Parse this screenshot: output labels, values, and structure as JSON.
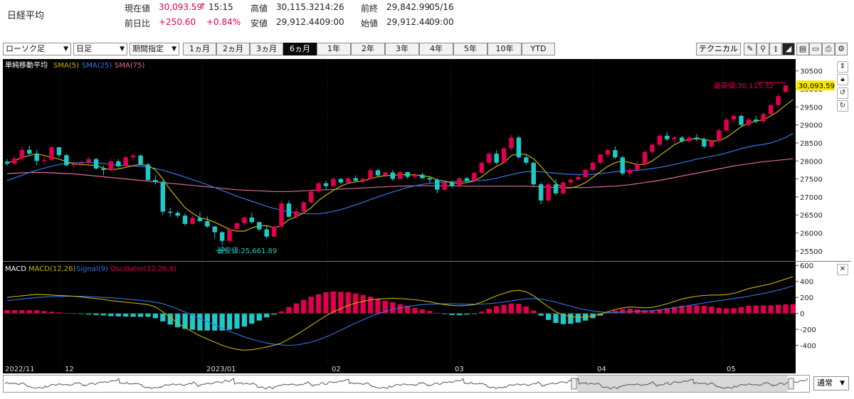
{
  "header": {
    "name": "日経平均",
    "current_label": "現在値",
    "current_value": "30,093.59",
    "current_arrow": "↑",
    "current_time": "15:15",
    "high_label": "高値",
    "high_value": "30,115.32",
    "high_time": "14:26",
    "prev_close_label": "前終",
    "prev_close_value": "29,842.99",
    "prev_close_date": "05/16",
    "change_label": "前日比",
    "change_value": "+250.60",
    "change_pct": "+0.84%",
    "low_label": "安値",
    "low_value": "29,912.44",
    "low_time": "09:00",
    "open_label": "始値",
    "open_value": "29,912.44",
    "open_time": "09:00"
  },
  "toolbar": {
    "chart_type": "ローソク足",
    "interval": "日足",
    "range_mode": "期間指定",
    "periods": [
      "1ヵ月",
      "2ヵ月",
      "3ヵ月",
      "6ヵ月",
      "1年",
      "2年",
      "3年",
      "4年",
      "5年",
      "10年",
      "YTD"
    ],
    "active_period": "6ヵ月",
    "technical_label": "テクニカル",
    "tool_icons": [
      "pencil-icon",
      "zoom-icon",
      "volume-icon",
      "area-chart-icon",
      "document-icon",
      "folder-icon",
      "print-icon",
      "settings-icon"
    ]
  },
  "view_select": "通常",
  "colors": {
    "up": "#e0004d",
    "down": "#20c8c8",
    "sma5": "#c8b400",
    "sma25": "#2f78e0",
    "sma75": "#e06a9a",
    "macd": "#c8b400",
    "signal": "#2f78e0",
    "hist_pos": "#e0004d",
    "hist_neg": "#20c8c8",
    "background": "#000000"
  },
  "chart_data": [
    {
      "type": "candlestick",
      "title": "単純移動平均",
      "legend": [
        "SMA(5)",
        "SMA(25)",
        "SMA(75)"
      ],
      "y_ticks": [
        25500,
        26000,
        26500,
        27000,
        27500,
        28000,
        28500,
        29000,
        29500,
        30000,
        30500
      ],
      "ylim": [
        25300,
        30750
      ],
      "x_labels": [
        "2022/11",
        "12",
        "2023/01",
        "02",
        "03",
        "04",
        "05"
      ],
      "last_price_label": "30,093.59",
      "annotations": {
        "high": "最高値:30,115.32",
        "low": "最安値:25,661.89"
      },
      "ohlc": [
        [
          27980,
          28050,
          27860,
          27920
        ],
        [
          27920,
          28150,
          27870,
          28070
        ],
        [
          28070,
          28400,
          27990,
          28310
        ],
        [
          28310,
          28420,
          28150,
          28200
        ],
        [
          28200,
          28300,
          27880,
          28000
        ],
        [
          28000,
          28120,
          27900,
          28030
        ],
        [
          28030,
          28410,
          27990,
          28380
        ],
        [
          28380,
          28390,
          28100,
          28160
        ],
        [
          28160,
          28200,
          27850,
          27880
        ],
        [
          27880,
          28000,
          27800,
          27920
        ],
        [
          27920,
          28010,
          27840,
          27960
        ],
        [
          27960,
          28110,
          27850,
          28050
        ],
        [
          28050,
          28090,
          27760,
          27790
        ],
        [
          27790,
          27880,
          27600,
          27750
        ],
        [
          27750,
          28050,
          27700,
          27990
        ],
        [
          27990,
          28050,
          27820,
          27850
        ],
        [
          27850,
          28150,
          27800,
          28100
        ],
        [
          28100,
          28200,
          28000,
          28150
        ],
        [
          28150,
          28180,
          27880,
          27900
        ],
        [
          27900,
          27950,
          27450,
          27470
        ],
        [
          27470,
          27600,
          27350,
          27420
        ],
        [
          27420,
          27460,
          26500,
          26590
        ],
        [
          26590,
          26700,
          26450,
          26560
        ],
        [
          26560,
          26620,
          26420,
          26480
        ],
        [
          26480,
          26550,
          26200,
          26250
        ],
        [
          26250,
          26480,
          26230,
          26420
        ],
        [
          26420,
          26580,
          26300,
          26330
        ],
        [
          26330,
          26460,
          26150,
          26180
        ],
        [
          26180,
          26200,
          25850,
          26020
        ],
        [
          26020,
          26050,
          25661,
          25780
        ],
        [
          25780,
          26150,
          25720,
          26110
        ],
        [
          26110,
          26300,
          26080,
          26270
        ],
        [
          26270,
          26450,
          26200,
          26430
        ],
        [
          26430,
          26560,
          26260,
          26300
        ],
        [
          26300,
          26320,
          26050,
          26100
        ],
        [
          26100,
          26200,
          25850,
          25900
        ],
        [
          25900,
          26200,
          25880,
          26180
        ],
        [
          26180,
          26900,
          26120,
          26820
        ],
        [
          26820,
          26900,
          26420,
          26450
        ],
        [
          26450,
          26700,
          26400,
          26600
        ],
        [
          26600,
          26900,
          26550,
          26850
        ],
        [
          26850,
          27200,
          26800,
          27150
        ],
        [
          27150,
          27420,
          27100,
          27380
        ],
        [
          27380,
          27450,
          27200,
          27300
        ],
        [
          27300,
          27550,
          27280,
          27500
        ],
        [
          27500,
          27520,
          27350,
          27400
        ],
        [
          27400,
          27560,
          27370,
          27520
        ],
        [
          27520,
          27600,
          27420,
          27450
        ],
        [
          27450,
          27550,
          27380,
          27500
        ],
        [
          27500,
          27800,
          27480,
          27740
        ],
        [
          27740,
          27780,
          27550,
          27600
        ],
        [
          27600,
          27720,
          27550,
          27680
        ],
        [
          27680,
          27750,
          27450,
          27500
        ],
        [
          27500,
          27720,
          27480,
          27690
        ],
        [
          27690,
          27700,
          27500,
          27560
        ],
        [
          27560,
          27650,
          27520,
          27620
        ],
        [
          27620,
          27680,
          27500,
          27520
        ],
        [
          27520,
          27580,
          27380,
          27480
        ],
        [
          27480,
          27520,
          27100,
          27200
        ],
        [
          27200,
          27440,
          27150,
          27400
        ],
        [
          27400,
          27450,
          27250,
          27300
        ],
        [
          27300,
          27550,
          27280,
          27520
        ],
        [
          27520,
          27560,
          27400,
          27450
        ],
        [
          27450,
          27700,
          27430,
          27670
        ],
        [
          27670,
          28000,
          27650,
          27950
        ],
        [
          27950,
          28250,
          27900,
          28200
        ],
        [
          28200,
          28300,
          27900,
          27950
        ],
        [
          27950,
          28400,
          27930,
          28350
        ],
        [
          28350,
          28720,
          28300,
          28650
        ],
        [
          28650,
          28700,
          28050,
          28100
        ],
        [
          28100,
          28200,
          27900,
          27950
        ],
        [
          27950,
          27980,
          27300,
          27350
        ],
        [
          27350,
          27400,
          26800,
          26900
        ],
        [
          26900,
          27400,
          26880,
          27350
        ],
        [
          27350,
          27500,
          27050,
          27100
        ],
        [
          27100,
          27450,
          27050,
          27400
        ],
        [
          27400,
          27500,
          27300,
          27480
        ],
        [
          27480,
          27600,
          27450,
          27550
        ],
        [
          27550,
          27800,
          27500,
          27750
        ],
        [
          27750,
          28000,
          27700,
          27950
        ],
        [
          27950,
          28200,
          27900,
          28180
        ],
        [
          28180,
          28350,
          28100,
          28300
        ],
        [
          28300,
          28400,
          28050,
          28100
        ],
        [
          28100,
          28150,
          27600,
          27650
        ],
        [
          27650,
          27800,
          27550,
          27750
        ],
        [
          27750,
          28000,
          27700,
          27900
        ],
        [
          27900,
          28300,
          27850,
          28250
        ],
        [
          28250,
          28500,
          28200,
          28450
        ],
        [
          28450,
          28750,
          28400,
          28700
        ],
        [
          28700,
          28800,
          28550,
          28600
        ],
        [
          28600,
          28700,
          28450,
          28650
        ],
        [
          28650,
          28700,
          28500,
          28550
        ],
        [
          28550,
          28700,
          28500,
          28650
        ],
        [
          28650,
          28750,
          28550,
          28600
        ],
        [
          28600,
          28650,
          28350,
          28400
        ],
        [
          28400,
          28600,
          28350,
          28550
        ],
        [
          28550,
          28900,
          28500,
          28850
        ],
        [
          28850,
          29200,
          28800,
          29150
        ],
        [
          29150,
          29300,
          29050,
          29250
        ],
        [
          29250,
          29300,
          28950,
          29000
        ],
        [
          29000,
          29200,
          28950,
          29150
        ],
        [
          29150,
          29250,
          29050,
          29100
        ],
        [
          29100,
          29350,
          29050,
          29300
        ],
        [
          29300,
          29600,
          29250,
          29550
        ],
        [
          29550,
          29850,
          29500,
          29800
        ],
        [
          29912,
          30115,
          29912,
          30093
        ]
      ],
      "sma5": [
        27950,
        28000,
        28100,
        28150,
        28200,
        28150,
        28100,
        28050,
        27980,
        27920,
        27900,
        27890,
        27870,
        27800,
        27750,
        27780,
        27820,
        27870,
        27900,
        27870,
        27750,
        27500,
        27200,
        26950,
        26700,
        26550,
        26420,
        26380,
        26300,
        26200,
        26100,
        26050,
        26050,
        26140,
        26200,
        26200,
        26150,
        26200,
        26370,
        26450,
        26560,
        26700,
        26900,
        27050,
        27180,
        27300,
        27380,
        27420,
        27440,
        27510,
        27560,
        27590,
        27600,
        27620,
        27610,
        27620,
        27580,
        27560,
        27470,
        27440,
        27400,
        27370,
        27400,
        27440,
        27560,
        27720,
        27850,
        27950,
        28150,
        28200,
        28180,
        28060,
        27850,
        27600,
        27380,
        27250,
        27250,
        27300,
        27400,
        27550,
        27700,
        27850,
        27950,
        28000,
        27950,
        27900,
        27900,
        28000,
        28150,
        28300,
        28450,
        28550,
        28600,
        28620,
        28600,
        28550,
        28560,
        28650,
        28800,
        28950,
        29050,
        29100,
        29150,
        29250,
        29380,
        29550,
        29700
      ],
      "sma25": [
        27450,
        27530,
        27600,
        27680,
        27740,
        27800,
        27850,
        27900,
        27930,
        27950,
        27960,
        27960,
        27950,
        27930,
        27900,
        27880,
        27870,
        27860,
        27850,
        27830,
        27790,
        27740,
        27680,
        27620,
        27550,
        27480,
        27410,
        27340,
        27260,
        27180,
        27100,
        27020,
        26950,
        26880,
        26810,
        26740,
        26680,
        26630,
        26590,
        26560,
        26540,
        26530,
        26530,
        26560,
        26600,
        26650,
        26710,
        26780,
        26850,
        26930,
        27000,
        27070,
        27140,
        27200,
        27260,
        27310,
        27350,
        27380,
        27400,
        27410,
        27420,
        27430,
        27440,
        27450,
        27460,
        27480,
        27520,
        27570,
        27620,
        27670,
        27700,
        27710,
        27700,
        27680,
        27660,
        27640,
        27630,
        27620,
        27620,
        27630,
        27650,
        27670,
        27700,
        27720,
        27730,
        27740,
        27760,
        27790,
        27820,
        27860,
        27900,
        27950,
        28000,
        28050,
        28090,
        28130,
        28170,
        28220,
        28280,
        28340,
        28390,
        28430,
        28460,
        28500,
        28570,
        28650,
        28760
      ],
      "sma75": [
        27650,
        27660,
        27670,
        27680,
        27680,
        27680,
        27670,
        27660,
        27650,
        27640,
        27620,
        27600,
        27580,
        27560,
        27540,
        27520,
        27500,
        27480,
        27460,
        27440,
        27420,
        27400,
        27380,
        27360,
        27340,
        27320,
        27300,
        27280,
        27260,
        27240,
        27220,
        27200,
        27190,
        27180,
        27170,
        27160,
        27150,
        27150,
        27150,
        27160,
        27170,
        27180,
        27190,
        27200,
        27210,
        27220,
        27230,
        27240,
        27250,
        27260,
        27270,
        27280,
        27290,
        27300,
        27305,
        27310,
        27310,
        27310,
        27310,
        27310,
        27310,
        27300,
        27300,
        27300,
        27300,
        27300,
        27300,
        27300,
        27300,
        27300,
        27300,
        27290,
        27280,
        27270,
        27260,
        27260,
        27260,
        27260,
        27260,
        27270,
        27280,
        27290,
        27300,
        27320,
        27340,
        27370,
        27400,
        27430,
        27460,
        27500,
        27540,
        27580,
        27620,
        27660,
        27700,
        27740,
        27780,
        27820,
        27860,
        27890,
        27920,
        27950,
        27980,
        28000,
        28020,
        28040,
        28060
      ]
    },
    {
      "type": "macd",
      "legend": [
        "MACD",
        "MACD(12,26)",
        "Signal(9)",
        "Oscillator(12,26,9)"
      ],
      "y_ticks": [
        -400,
        -200,
        0,
        200,
        400,
        600
      ],
      "ylim": [
        -600,
        620
      ],
      "macd": [
        200,
        210,
        220,
        230,
        240,
        235,
        230,
        225,
        220,
        215,
        205,
        195,
        185,
        175,
        160,
        150,
        140,
        130,
        120,
        110,
        80,
        20,
        -50,
        -120,
        -180,
        -230,
        -280,
        -320,
        -360,
        -400,
        -430,
        -450,
        -460,
        -455,
        -440,
        -420,
        -400,
        -370,
        -320,
        -270,
        -210,
        -150,
        -90,
        -30,
        20,
        60,
        100,
        130,
        150,
        170,
        180,
        185,
        190,
        185,
        180,
        170,
        160,
        145,
        125,
        110,
        100,
        95,
        100,
        110,
        140,
        180,
        220,
        250,
        280,
        290,
        270,
        220,
        150,
        80,
        20,
        -20,
        -40,
        -50,
        -45,
        -30,
        -10,
        20,
        50,
        70,
        80,
        75,
        70,
        75,
        95,
        120,
        150,
        180,
        200,
        215,
        225,
        230,
        230,
        235,
        250,
        280,
        310,
        330,
        350,
        370,
        400,
        430,
        460
      ],
      "signal": [
        160,
        170,
        180,
        190,
        200,
        205,
        210,
        212,
        214,
        214,
        213,
        210,
        206,
        200,
        195,
        188,
        180,
        172,
        163,
        153,
        140,
        120,
        90,
        55,
        15,
        -25,
        -65,
        -105,
        -145,
        -185,
        -225,
        -260,
        -295,
        -325,
        -350,
        -370,
        -385,
        -395,
        -400,
        -395,
        -380,
        -360,
        -330,
        -295,
        -255,
        -210,
        -165,
        -120,
        -80,
        -40,
        -5,
        25,
        50,
        70,
        85,
        100,
        110,
        115,
        118,
        120,
        120,
        118,
        116,
        115,
        117,
        122,
        130,
        142,
        156,
        170,
        182,
        185,
        178,
        162,
        140,
        115,
        90,
        65,
        45,
        30,
        18,
        12,
        12,
        15,
        20,
        25,
        30,
        35,
        45,
        55,
        70,
        85,
        100,
        115,
        130,
        145,
        160,
        172,
        185,
        200,
        215,
        232,
        250,
        270,
        292,
        316,
        345
      ]
    }
  ]
}
